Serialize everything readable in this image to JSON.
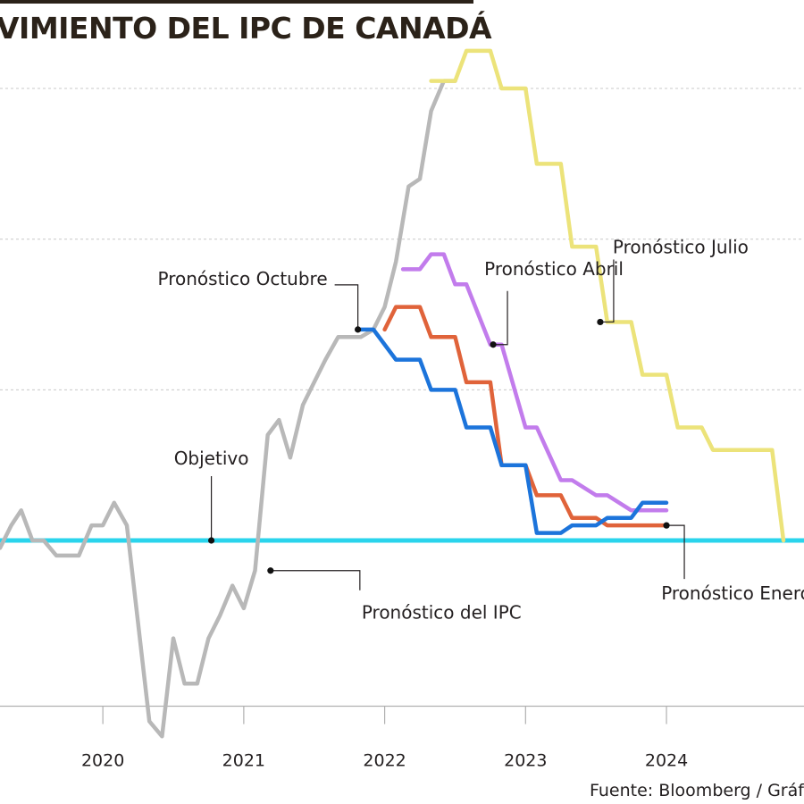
{
  "title": "VIMIENTO DEL IPC DE CANADÁ",
  "source": "Fuente: Bloomberg / Gráf",
  "chart_data": {
    "type": "line",
    "title": "VIMIENTO DEL IPC DE CANADÁ",
    "xlabel": "",
    "ylabel": "",
    "x_ticks": [
      "2020",
      "2021",
      "2022",
      "2023",
      "2024"
    ],
    "xlim": [
      2019.27,
      2024.9
    ],
    "ylim": [
      -1,
      8.7
    ],
    "grid": "horizontal dotted",
    "objective": {
      "label": "Objetivo",
      "value": 2.0
    },
    "colors": {
      "ipc": "#b8b8b8",
      "objetivo": "#2ad4ec",
      "octubre": "#1c74db",
      "enero": "#e0633a",
      "abril": "#c27cec",
      "julio": "#ece37a"
    },
    "series": [
      {
        "name": "Pronóstico del IPC",
        "key": "ipc",
        "x": [
          2019.27,
          2019.35,
          2019.42,
          2019.5,
          2019.58,
          2019.67,
          2019.75,
          2019.83,
          2019.92,
          2020.0,
          2020.08,
          2020.17,
          2020.25,
          2020.33,
          2020.42,
          2020.5,
          2020.58,
          2020.67,
          2020.75,
          2020.83,
          2020.92,
          2021.0,
          2021.08,
          2021.17,
          2021.25,
          2021.33,
          2021.42,
          2021.5,
          2021.58,
          2021.67,
          2021.75,
          2021.83,
          2021.92,
          2022.0,
          2022.08,
          2022.17,
          2022.25,
          2022.33,
          2022.42,
          2022.5
        ],
        "y": [
          1.9,
          2.2,
          2.4,
          2.0,
          2.0,
          1.8,
          1.8,
          1.8,
          2.2,
          2.2,
          2.5,
          2.2,
          0.9,
          -0.4,
          -0.6,
          0.7,
          0.1,
          0.1,
          0.7,
          1.0,
          1.4,
          1.1,
          1.6,
          3.4,
          3.6,
          3.1,
          3.8,
          4.1,
          4.4,
          4.7,
          4.7,
          4.7,
          4.8,
          5.1,
          5.7,
          6.7,
          6.8,
          7.7,
          8.1,
          8.1
        ]
      },
      {
        "name": "Pronóstico Octubre",
        "key": "octubre",
        "x": [
          2021.83,
          2021.92,
          2022.08,
          2022.25,
          2022.33,
          2022.5,
          2022.58,
          2022.75,
          2022.83,
          2023.0,
          2023.08,
          2023.25,
          2023.33,
          2023.5,
          2023.58,
          2023.75,
          2023.83,
          2024.0
        ],
        "y": [
          4.8,
          4.8,
          4.4,
          4.4,
          4.0,
          4.0,
          3.5,
          3.5,
          3.0,
          3.0,
          2.1,
          2.1,
          2.2,
          2.2,
          2.3,
          2.3,
          2.5,
          2.5
        ]
      },
      {
        "name": "Pronóstico Enero",
        "key": "enero",
        "x": [
          2022.0,
          2022.08,
          2022.25,
          2022.33,
          2022.5,
          2022.58,
          2022.75,
          2022.83,
          2023.0,
          2023.08,
          2023.25,
          2023.33,
          2023.5,
          2023.58,
          2024.0
        ],
        "y": [
          4.8,
          5.1,
          5.1,
          4.7,
          4.7,
          4.1,
          4.1,
          3.0,
          3.0,
          2.6,
          2.6,
          2.3,
          2.3,
          2.2,
          2.2
        ]
      },
      {
        "name": "Pronóstico Abril",
        "key": "abril",
        "x": [
          2022.13,
          2022.25,
          2022.33,
          2022.42,
          2022.5,
          2022.58,
          2022.75,
          2022.83,
          2023.0,
          2023.08,
          2023.25,
          2023.33,
          2023.5,
          2023.58,
          2023.75,
          2023.83,
          2024.0
        ],
        "y": [
          5.6,
          5.6,
          5.8,
          5.8,
          5.4,
          5.4,
          4.6,
          4.6,
          3.5,
          3.5,
          2.8,
          2.8,
          2.6,
          2.6,
          2.4,
          2.4,
          2.4
        ]
      },
      {
        "name": "Pronóstico Julio",
        "key": "julio",
        "x": [
          2022.33,
          2022.5,
          2022.58,
          2022.75,
          2022.83,
          2023.0,
          2023.08,
          2023.25,
          2023.33,
          2023.5,
          2023.58,
          2023.75,
          2023.83,
          2024.0,
          2024.08,
          2024.25,
          2024.33,
          2024.75,
          2024.83
        ],
        "y": [
          8.1,
          8.1,
          8.5,
          8.5,
          8.0,
          8.0,
          7.0,
          7.0,
          5.9,
          5.9,
          4.9,
          4.9,
          4.2,
          4.2,
          3.5,
          3.5,
          3.2,
          3.2,
          2.0
        ]
      }
    ],
    "annotations": [
      {
        "text": "Objetivo",
        "key": "objetivo",
        "x": 2020.77,
        "y": 2.0
      },
      {
        "text": "Pronóstico Octubre",
        "key": "octubre",
        "x": 2021.81,
        "y": 4.8
      },
      {
        "text": "Pronóstico del IPC",
        "key": "ipc",
        "x": 2021.19,
        "y": 1.6
      },
      {
        "text": "Pronóstico Abril",
        "key": "abril",
        "x": 2022.77,
        "y": 4.6
      },
      {
        "text": "Pronóstico Julio",
        "key": "julio",
        "x": 2023.53,
        "y": 4.9
      },
      {
        "text": "Pronóstico Enero",
        "key": "enero",
        "x": 2024.0,
        "y": 2.2
      }
    ]
  }
}
